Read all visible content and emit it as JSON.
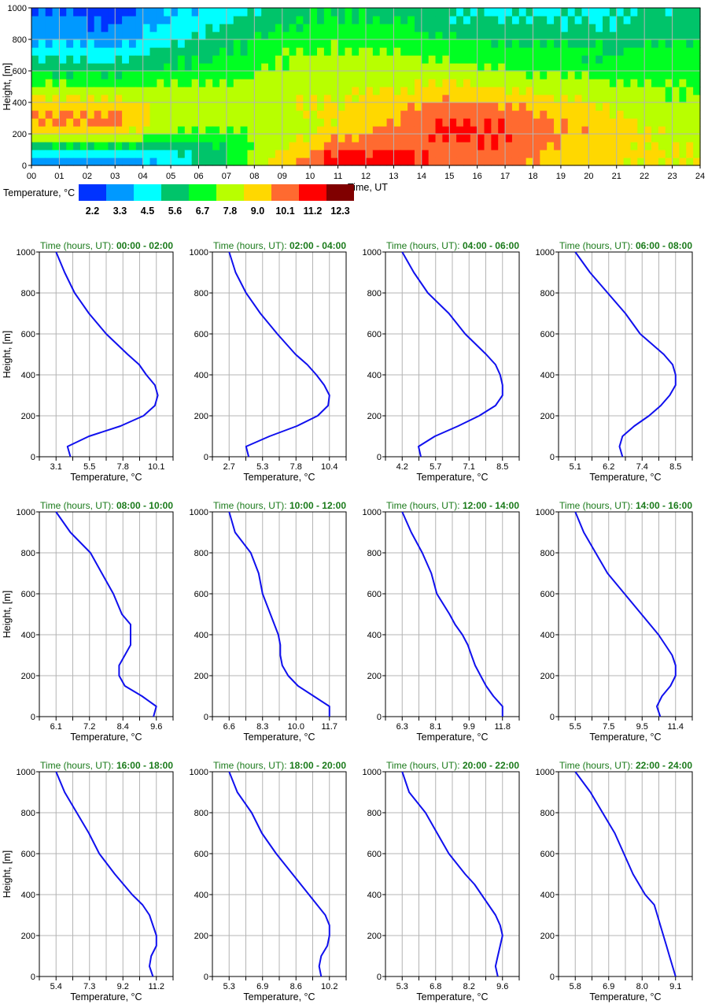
{
  "chart_data": [
    {
      "type": "heatmap",
      "xlabel": "Time, UT",
      "ylabel": "Height, [m]",
      "xlim": [
        0,
        24
      ],
      "ylim": [
        0,
        1000
      ],
      "xticks": [
        "00",
        "01",
        "02",
        "03",
        "04",
        "05",
        "06",
        "07",
        "08",
        "09",
        "10",
        "11",
        "12",
        "13",
        "14",
        "15",
        "16",
        "17",
        "18",
        "19",
        "20",
        "21",
        "22",
        "23",
        "24"
      ],
      "yticks": [
        "0",
        "200",
        "400",
        "600",
        "800",
        "1000"
      ],
      "grid": true,
      "colorbar": {
        "label": "Temperature, °C",
        "levels": [
          "2.2",
          "3.3",
          "4.5",
          "5.6",
          "6.7",
          "7.8",
          "9.0",
          "10.1",
          "11.2",
          "12.3"
        ],
        "colors": [
          "#0033ff",
          "#0099ff",
          "#00ffff",
          "#00c46a",
          "#00ff22",
          "#b8ff00",
          "#ffd800",
          "#ff6a30",
          "#ff0000",
          "#800000"
        ]
      }
    },
    {
      "type": "line",
      "title_prefix": "Time (hours, UT): ",
      "xlabel": "Temperature, °C",
      "ylabel": "Height, [m]",
      "ylim": [
        0,
        1000
      ],
      "yticks": [
        "0",
        "200",
        "400",
        "600",
        "800",
        "1000"
      ],
      "grid": true,
      "line_color": "#1010ee",
      "heights": [
        1000,
        900,
        800,
        700,
        600,
        500,
        450,
        400,
        350,
        300,
        250,
        200,
        150,
        100,
        50,
        0
      ],
      "panels": [
        {
          "period": "00:00 - 02:00",
          "xticks": [
            "3.1",
            "5.5",
            "7.8",
            "10.1"
          ],
          "temps": [
            3.1,
            3.7,
            4.4,
            5.4,
            6.6,
            8.1,
            8.9,
            9.4,
            10.0,
            10.2,
            10.0,
            9.2,
            7.6,
            5.4,
            3.9,
            4.1
          ]
        },
        {
          "period": "02:00 - 04:00",
          "xticks": [
            "2.7",
            "5.3",
            "7.8",
            "10.4"
          ],
          "temps": [
            2.7,
            3.2,
            4.0,
            5.1,
            6.4,
            7.8,
            8.7,
            9.4,
            10.0,
            10.4,
            10.3,
            9.5,
            7.9,
            5.8,
            4.0,
            4.2
          ]
        },
        {
          "period": "04:00 - 06:00",
          "xticks": [
            "4.2",
            "5.7",
            "7.1",
            "8.5"
          ],
          "temps": [
            4.2,
            4.7,
            5.3,
            6.2,
            6.9,
            7.8,
            8.2,
            8.4,
            8.5,
            8.5,
            8.2,
            7.5,
            6.6,
            5.6,
            4.9,
            5.0
          ]
        },
        {
          "period": "06:00 - 08:00",
          "xticks": [
            "5.1",
            "6.2",
            "7.4",
            "8.5"
          ],
          "temps": [
            5.1,
            5.6,
            6.2,
            6.8,
            7.3,
            8.1,
            8.4,
            8.5,
            8.5,
            8.3,
            8.0,
            7.6,
            7.1,
            6.7,
            6.6,
            6.7
          ]
        },
        {
          "period": "08:00 - 10:00",
          "xticks": [
            "6.1",
            "7.2",
            "8.4",
            "9.6"
          ],
          "temps": [
            6.1,
            6.6,
            7.3,
            7.7,
            8.1,
            8.4,
            8.7,
            8.7,
            8.7,
            8.5,
            8.3,
            8.3,
            8.5,
            9.1,
            9.6,
            9.5
          ]
        },
        {
          "period": "10:00 - 12:00",
          "xticks": [
            "6.6",
            "8.3",
            "10.0",
            "11.7"
          ],
          "temps": [
            6.6,
            6.9,
            7.7,
            8.1,
            8.3,
            8.7,
            8.9,
            9.1,
            9.2,
            9.2,
            9.3,
            9.6,
            10.1,
            10.9,
            11.7,
            11.7
          ]
        },
        {
          "period": "12:00 - 14:00",
          "xticks": [
            "6.3",
            "8.1",
            "9.9",
            "11.8"
          ],
          "temps": [
            6.3,
            6.8,
            7.4,
            7.9,
            8.2,
            8.9,
            9.2,
            9.6,
            9.9,
            10.1,
            10.3,
            10.6,
            10.9,
            11.3,
            11.8,
            11.8
          ]
        },
        {
          "period": "14:00 - 16:00",
          "xticks": [
            "5.5",
            "7.5",
            "9.5",
            "11.4"
          ],
          "temps": [
            5.5,
            6.0,
            6.7,
            7.4,
            8.4,
            9.4,
            9.9,
            10.4,
            10.8,
            11.2,
            11.4,
            11.4,
            11.1,
            10.6,
            10.3,
            10.5
          ]
        },
        {
          "period": "16:00 - 18:00",
          "xticks": [
            "5.4",
            "7.3",
            "9.2",
            "11.2"
          ],
          "temps": [
            5.4,
            5.9,
            6.6,
            7.3,
            7.9,
            8.8,
            9.3,
            9.8,
            10.4,
            10.8,
            11.0,
            11.2,
            11.2,
            10.9,
            10.8,
            11.0
          ]
        },
        {
          "period": "18:00 - 20:00",
          "xticks": [
            "5.3",
            "6.9",
            "8.6",
            "10.2"
          ],
          "temps": [
            5.3,
            5.7,
            6.4,
            6.9,
            7.6,
            8.4,
            8.8,
            9.2,
            9.6,
            10.0,
            10.2,
            10.2,
            10.1,
            9.8,
            9.7,
            9.8
          ]
        },
        {
          "period": "20:00 - 22:00",
          "xticks": [
            "5.3",
            "6.8",
            "8.2",
            "9.6"
          ],
          "temps": [
            5.3,
            5.6,
            6.3,
            6.8,
            7.3,
            8.0,
            8.4,
            8.7,
            9.0,
            9.3,
            9.5,
            9.6,
            9.5,
            9.4,
            9.3,
            9.4
          ]
        },
        {
          "period": "22:00 - 24:00",
          "xticks": [
            "5.8",
            "6.9",
            "8.0",
            "9.1"
          ],
          "temps": [
            5.8,
            6.3,
            6.7,
            7.1,
            7.4,
            7.7,
            7.9,
            8.1,
            8.4,
            8.5,
            8.6,
            8.7,
            8.8,
            8.9,
            9.0,
            9.1
          ]
        }
      ]
    }
  ]
}
